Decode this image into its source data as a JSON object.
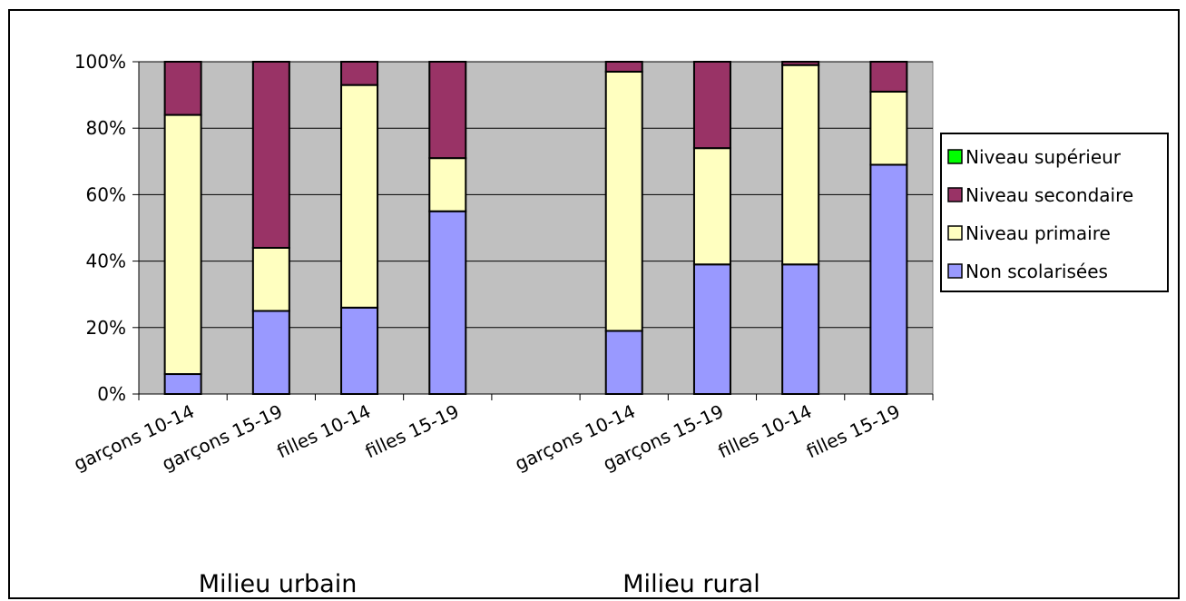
{
  "chart_data": {
    "type": "bar",
    "stacked": true,
    "percent": true,
    "categories": [
      "garçons 10-14",
      "garçons 15-19",
      "filles 10-14",
      "filles 15-19",
      "",
      "garçons 10-14",
      "garçons 15-19",
      "filles 10-14",
      "filles 15-19"
    ],
    "category_labels_shown": [
      "garçons 10-14",
      "garçons 15-19",
      "filles 10-14",
      "filles 15-19",
      "",
      "garçons 10-14",
      "garçons 15-19",
      "filles 10-14",
      "filles 15-19"
    ],
    "groups": [
      {
        "label": "Milieu urbain"
      },
      {
        "label": "Milieu rural"
      }
    ],
    "series": [
      {
        "name": "Non scolarisées",
        "color": "#9999ff",
        "values": [
          6,
          25,
          26,
          55,
          null,
          19,
          39,
          39,
          69
        ]
      },
      {
        "name": "Niveau primaire",
        "color": "#ffffc0",
        "values": [
          78,
          19,
          67,
          16,
          null,
          78,
          35,
          60,
          22
        ]
      },
      {
        "name": "Niveau secondaire",
        "color": "#993366",
        "values": [
          16,
          56,
          7,
          29,
          null,
          3,
          26,
          1,
          9
        ]
      },
      {
        "name": "Niveau supérieur",
        "color": "#00ff00",
        "values": [
          0,
          0,
          0,
          0,
          null,
          0,
          0,
          0,
          0
        ]
      }
    ],
    "legend_order": [
      "Niveau supérieur",
      "Niveau secondaire",
      "Niveau primaire",
      "Non scolarisées"
    ],
    "yticks": [
      "0%",
      "20%",
      "40%",
      "60%",
      "80%",
      "100%"
    ],
    "ylim": [
      0,
      100
    ],
    "grid": true,
    "plot_background": "#c0c0c0",
    "legend_position": "right",
    "title": "",
    "xlabel": "",
    "ylabel": ""
  }
}
